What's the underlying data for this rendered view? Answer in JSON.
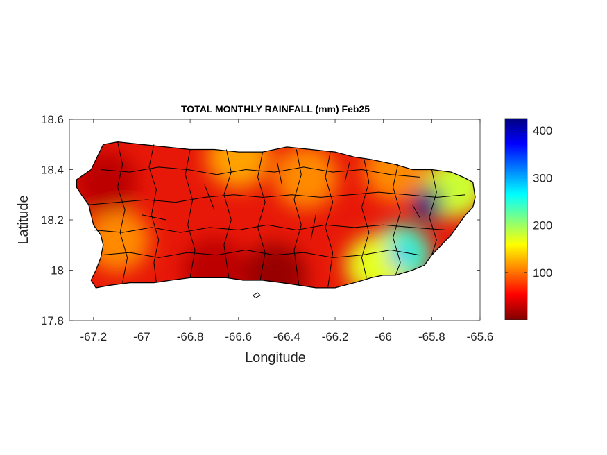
{
  "chart_data": {
    "type": "heatmap",
    "title": "TOTAL MONTHLY RAINFALL (mm) Feb25",
    "xlabel": "Longitude",
    "ylabel": "Latitude",
    "xlim": [
      -67.3,
      -65.6
    ],
    "ylim": [
      17.8,
      18.6
    ],
    "x_ticks": [
      -67.2,
      -67.0,
      -66.8,
      -66.6,
      -66.4,
      -66.2,
      -66.0,
      -65.8,
      -65.6
    ],
    "x_tick_labels": [
      "-67.2",
      "-67",
      "-66.8",
      "-66.6",
      "-66.4",
      "-66.2",
      "-66",
      "-65.8",
      "-65.6"
    ],
    "y_ticks": [
      17.8,
      18.0,
      18.2,
      18.4,
      18.6
    ],
    "y_tick_labels": [
      "17.8",
      "18",
      "18.2",
      "18.4",
      "18.6"
    ],
    "colorbar": {
      "range": [
        0,
        425
      ],
      "ticks": [
        100,
        200,
        300,
        400
      ],
      "tick_labels": [
        "100",
        "200",
        "300",
        "400"
      ],
      "colormap": "jet-reversed",
      "stops": [
        {
          "value": 0,
          "color": "#800000"
        },
        {
          "value": 53,
          "color": "#ff0000"
        },
        {
          "value": 106,
          "color": "#ff8000"
        },
        {
          "value": 159,
          "color": "#ffff00"
        },
        {
          "value": 212,
          "color": "#80ff80"
        },
        {
          "value": 265,
          "color": "#00ffff"
        },
        {
          "value": 318,
          "color": "#0080ff"
        },
        {
          "value": 372,
          "color": "#0000ff"
        },
        {
          "value": 425,
          "color": "#000080"
        }
      ]
    },
    "grid": false,
    "outline_color": "#000000",
    "rainfall_anomalies": [
      {
        "lon": -65.79,
        "lat": 18.29,
        "value": 420
      },
      {
        "lon": -65.93,
        "lat": 18.06,
        "value": 240
      },
      {
        "lon": -66.03,
        "lat": 18.02,
        "value": 170
      },
      {
        "lon": -65.7,
        "lat": 18.33,
        "value": 180
      },
      {
        "lon": -66.6,
        "lat": 18.45,
        "value": 120
      },
      {
        "lon": -66.32,
        "lat": 18.37,
        "value": 110
      },
      {
        "lon": -65.95,
        "lat": 18.4,
        "value": 110
      },
      {
        "lon": -67.1,
        "lat": 18.12,
        "value": 110
      },
      {
        "lon": -66.45,
        "lat": 17.98,
        "value": 10
      },
      {
        "lon": -66.7,
        "lat": 18.0,
        "value": 25
      },
      {
        "lon": -67.15,
        "lat": 18.35,
        "value": 25
      }
    ]
  }
}
